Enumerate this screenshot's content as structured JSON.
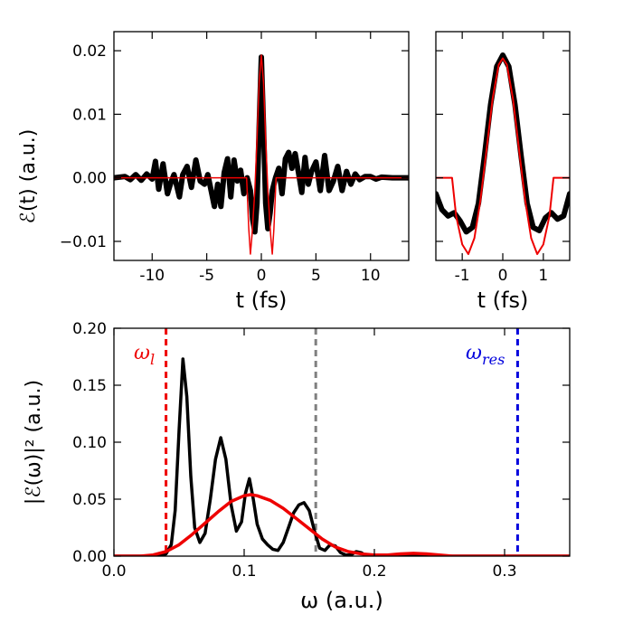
{
  "chart_data": [
    {
      "id": "time-full",
      "type": "line",
      "xlabel": "t (fs)",
      "ylabel": "ℰ(t) (a.u.)",
      "xlim": [
        -13.5,
        13.5
      ],
      "ylim": [
        -0.013,
        0.023
      ],
      "xticks": [
        -10,
        -5,
        0,
        5,
        10
      ],
      "xtick_labels": [
        "-10",
        "-5",
        "0",
        "5",
        "10"
      ],
      "yticks": [
        -0.01,
        0.0,
        0.01,
        0.02
      ],
      "ytick_labels": [
        "−0.01",
        "0.00",
        "0.01",
        "0.02"
      ],
      "series": [
        {
          "name": "field",
          "color": "#000000",
          "x": [
            -13.5,
            -12.5,
            -12,
            -11.5,
            -11,
            -10.5,
            -10,
            -9.7,
            -9.4,
            -9,
            -8.6,
            -8.3,
            -8,
            -7.5,
            -7.2,
            -6.8,
            -6.4,
            -6,
            -5.6,
            -5.2,
            -4.9,
            -4.6,
            -4.3,
            -4,
            -3.7,
            -3.4,
            -3.1,
            -2.8,
            -2.5,
            -2.2,
            -1.9,
            -1.6,
            -1.3,
            -1.0,
            -0.8,
            -0.6,
            -0.4,
            -0.2,
            0,
            0.2,
            0.4,
            0.6,
            0.8,
            1.0,
            1.3,
            1.6,
            1.9,
            2.2,
            2.5,
            2.8,
            3.1,
            3.4,
            3.7,
            4.0,
            4.3,
            4.6,
            5.0,
            5.4,
            5.8,
            6.2,
            6.6,
            7.0,
            7.4,
            7.8,
            8.2,
            8.6,
            9,
            9.5,
            10,
            10.5,
            11,
            12,
            13.5
          ],
          "y": [
            0.0,
            0.0002,
            -0.0003,
            0.0005,
            -0.0004,
            0.0006,
            -0.0002,
            0.0026,
            -0.0018,
            0.0022,
            -0.0025,
            -0.0008,
            0.0005,
            -0.003,
            0.0005,
            0.0018,
            -0.0015,
            0.0028,
            -0.0005,
            -0.001,
            0.0005,
            -0.002,
            -0.0045,
            -0.001,
            -0.0045,
            0.0008,
            0.003,
            -0.003,
            0.0028,
            -0.0005,
            0.0012,
            -0.0025,
            0.0,
            -0.002,
            -0.0065,
            -0.0085,
            -0.004,
            0.008,
            0.019,
            0.008,
            -0.004,
            -0.008,
            -0.0055,
            -0.002,
            0.0,
            0.0015,
            -0.0025,
            0.003,
            0.004,
            0.0015,
            0.0038,
            0.0008,
            -0.0023,
            0.0032,
            -0.001,
            0.001,
            0.0025,
            -0.002,
            0.0035,
            -0.002,
            -0.0005,
            0.0018,
            -0.002,
            0.001,
            -0.001,
            0.0006,
            -0.0003,
            0.0002,
            0.0002,
            -0.0002,
            0.0001,
            0.0,
            0.0
          ]
        },
        {
          "name": "model",
          "color": "#ee0000",
          "x": [
            -13.5,
            -1.35,
            -1.15,
            -1.0,
            -0.85,
            -0.6,
            -0.4,
            -0.2,
            0,
            0.2,
            0.4,
            0.6,
            0.85,
            1.0,
            1.15,
            1.35,
            13.5
          ],
          "y": [
            0.0,
            0.0,
            -0.008,
            -0.012,
            -0.009,
            -0.002,
            0.006,
            0.015,
            0.0193,
            0.015,
            0.006,
            -0.002,
            -0.009,
            -0.012,
            -0.008,
            0.0,
            0.0
          ]
        }
      ]
    },
    {
      "id": "time-zoom",
      "type": "line",
      "xlabel": "t (fs)",
      "xlim": [
        -1.65,
        1.65
      ],
      "ylim": [
        -0.013,
        0.023
      ],
      "xticks": [
        -1,
        0,
        1
      ],
      "xtick_labels": [
        "-1",
        "0",
        "1"
      ],
      "series": [
        {
          "name": "field",
          "color": "#000000",
          "x": [
            -1.65,
            -1.5,
            -1.35,
            -1.2,
            -1.05,
            -0.9,
            -0.75,
            -0.6,
            -0.45,
            -0.3,
            -0.15,
            0,
            0.15,
            0.3,
            0.45,
            0.6,
            0.75,
            0.9,
            1.05,
            1.2,
            1.35,
            1.5,
            1.65
          ],
          "y": [
            -0.0025,
            -0.005,
            -0.006,
            -0.0055,
            -0.0068,
            -0.0085,
            -0.0078,
            -0.004,
            0.0035,
            0.0115,
            0.0175,
            0.0193,
            0.0175,
            0.0115,
            0.0035,
            -0.004,
            -0.0078,
            -0.0083,
            -0.0063,
            -0.0055,
            -0.0065,
            -0.006,
            -0.0025
          ]
        },
        {
          "name": "model",
          "color": "#ee0000",
          "x": [
            -1.65,
            -1.25,
            -1.15,
            -1.0,
            -0.85,
            -0.7,
            -0.55,
            -0.4,
            -0.25,
            -0.1,
            0,
            0.1,
            0.25,
            0.4,
            0.55,
            0.7,
            0.85,
            1.0,
            1.15,
            1.25,
            1.65
          ],
          "y": [
            0.0,
            0.0,
            -0.006,
            -0.0105,
            -0.012,
            -0.0095,
            -0.0035,
            0.0045,
            0.0125,
            0.0178,
            0.0188,
            0.0178,
            0.0125,
            0.0045,
            -0.0035,
            -0.0095,
            -0.012,
            -0.0105,
            -0.006,
            0.0,
            0.0
          ]
        }
      ]
    },
    {
      "id": "spectrum",
      "type": "line",
      "xlabel": "ω (a.u.)",
      "ylabel": "|ℰ(ω)|² (a.u.)",
      "xlim": [
        0.0,
        0.35
      ],
      "ylim": [
        0.0,
        0.2
      ],
      "xticks": [
        0.0,
        0.1,
        0.2,
        0.3
      ],
      "xtick_labels": [
        "0.0",
        "0.1",
        "0.2",
        "0.3"
      ],
      "yticks": [
        0.0,
        0.05,
        0.1,
        0.15,
        0.2
      ],
      "ytick_labels": [
        "0.00",
        "0.05",
        "0.10",
        "0.15",
        "0.20"
      ],
      "series": [
        {
          "name": "spectrum",
          "color": "#000000",
          "x": [
            0.0,
            0.035,
            0.04,
            0.044,
            0.047,
            0.05,
            0.053,
            0.056,
            0.059,
            0.062,
            0.066,
            0.07,
            0.074,
            0.078,
            0.082,
            0.086,
            0.09,
            0.094,
            0.098,
            0.101,
            0.104,
            0.107,
            0.11,
            0.114,
            0.118,
            0.122,
            0.126,
            0.13,
            0.134,
            0.138,
            0.142,
            0.146,
            0.15,
            0.154,
            0.158,
            0.162,
            0.166,
            0.17,
            0.174,
            0.178,
            0.182,
            0.186,
            0.19,
            0.194,
            0.2,
            0.35
          ],
          "y": [
            0.0,
            0.0,
            0.002,
            0.01,
            0.04,
            0.11,
            0.173,
            0.14,
            0.07,
            0.025,
            0.012,
            0.02,
            0.05,
            0.085,
            0.104,
            0.085,
            0.045,
            0.022,
            0.03,
            0.055,
            0.068,
            0.05,
            0.028,
            0.015,
            0.01,
            0.006,
            0.005,
            0.012,
            0.025,
            0.038,
            0.045,
            0.047,
            0.04,
            0.022,
            0.007,
            0.005,
            0.01,
            0.009,
            0.003,
            0.001,
            0.001,
            0.004,
            0.003,
            0.0,
            0.0,
            0.0
          ]
        },
        {
          "name": "model",
          "color": "#ee0000",
          "x": [
            0.0,
            0.02,
            0.03,
            0.04,
            0.05,
            0.06,
            0.07,
            0.08,
            0.09,
            0.1,
            0.105,
            0.11,
            0.12,
            0.13,
            0.14,
            0.15,
            0.16,
            0.17,
            0.18,
            0.19,
            0.2,
            0.21,
            0.22,
            0.23,
            0.24,
            0.25,
            0.26,
            0.35
          ],
          "y": [
            0.0,
            0.0,
            0.001,
            0.004,
            0.01,
            0.019,
            0.029,
            0.039,
            0.048,
            0.053,
            0.054,
            0.053,
            0.049,
            0.042,
            0.033,
            0.024,
            0.015,
            0.008,
            0.004,
            0.002,
            0.001,
            0.001,
            0.002,
            0.0025,
            0.002,
            0.001,
            0.0,
            0.0
          ]
        }
      ],
      "vlines": [
        {
          "name": "omega-l-line",
          "x": 0.04,
          "color": "#ee0000"
        },
        {
          "name": "central-line",
          "x": 0.155,
          "color": "#808080"
        },
        {
          "name": "omega-res-line",
          "x": 0.31,
          "color": "#0000dd"
        }
      ],
      "annotations": [
        {
          "name": "omega-l-label",
          "text": "ω",
          "sub": "l",
          "color": "#ee0000",
          "position": "top-left"
        },
        {
          "name": "omega-res-label",
          "text": "ω",
          "sub": "res",
          "color": "#0000dd",
          "position": "top-right"
        }
      ]
    }
  ]
}
